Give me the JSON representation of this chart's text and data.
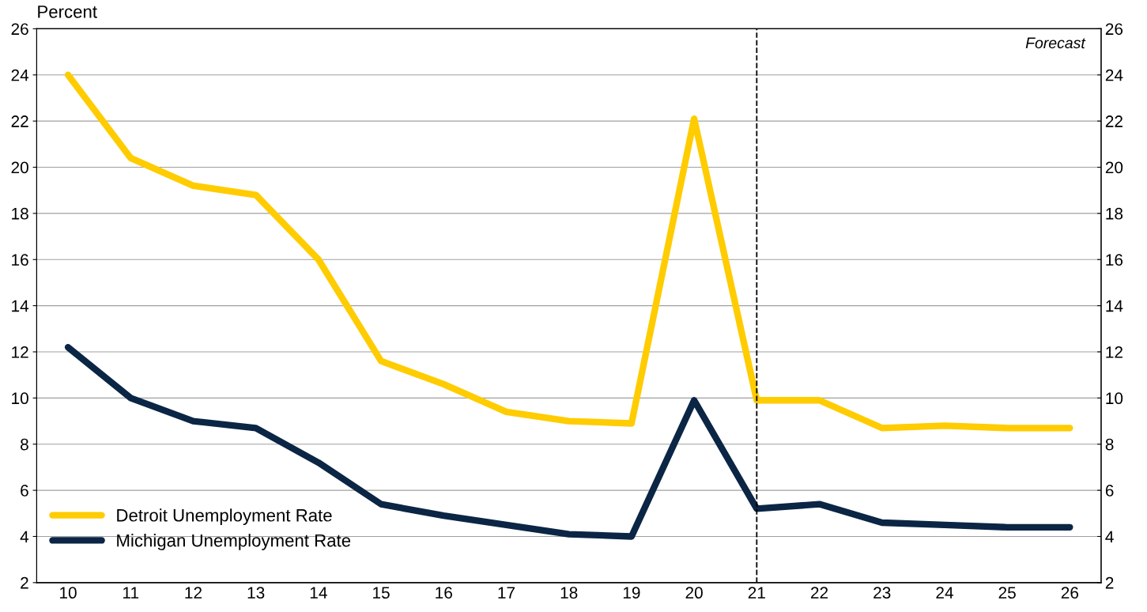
{
  "chart_data": {
    "type": "line",
    "ylabel": "Percent",
    "categories": [
      "10",
      "11",
      "12",
      "13",
      "14",
      "15",
      "16",
      "17",
      "18",
      "19",
      "20",
      "21",
      "22",
      "23",
      "24",
      "25",
      "26"
    ],
    "series": [
      {
        "name": "Detroit Unemployment Rate",
        "color": "#ffcc00",
        "values": [
          24.0,
          20.4,
          19.2,
          18.8,
          16.0,
          11.6,
          10.6,
          9.4,
          9.0,
          8.9,
          22.1,
          9.9,
          9.9,
          8.7,
          8.8,
          8.7,
          8.7
        ]
      },
      {
        "name": "Michigan Unemployment Rate",
        "color": "#0b2545",
        "values": [
          12.2,
          10.0,
          9.0,
          8.7,
          7.2,
          5.4,
          4.9,
          4.5,
          4.1,
          4.0,
          9.9,
          5.2,
          5.4,
          4.6,
          4.5,
          4.4,
          4.4
        ]
      }
    ],
    "ylim": [
      2,
      26
    ],
    "yticks": [
      2,
      4,
      6,
      8,
      10,
      12,
      14,
      16,
      18,
      20,
      22,
      24,
      26
    ],
    "y2lim": [
      2,
      26
    ],
    "y2ticks": [
      2,
      4,
      6,
      8,
      10,
      12,
      14,
      16,
      18,
      20,
      22,
      24,
      26
    ],
    "ref_lines": [
      {
        "axis": "x",
        "value": "21",
        "color": "#000000",
        "line_style": "dashed"
      }
    ],
    "annotations": [
      "Forecast"
    ],
    "grid": "y",
    "legend": "bottom left",
    "marker": "none",
    "line_style": "solid"
  }
}
